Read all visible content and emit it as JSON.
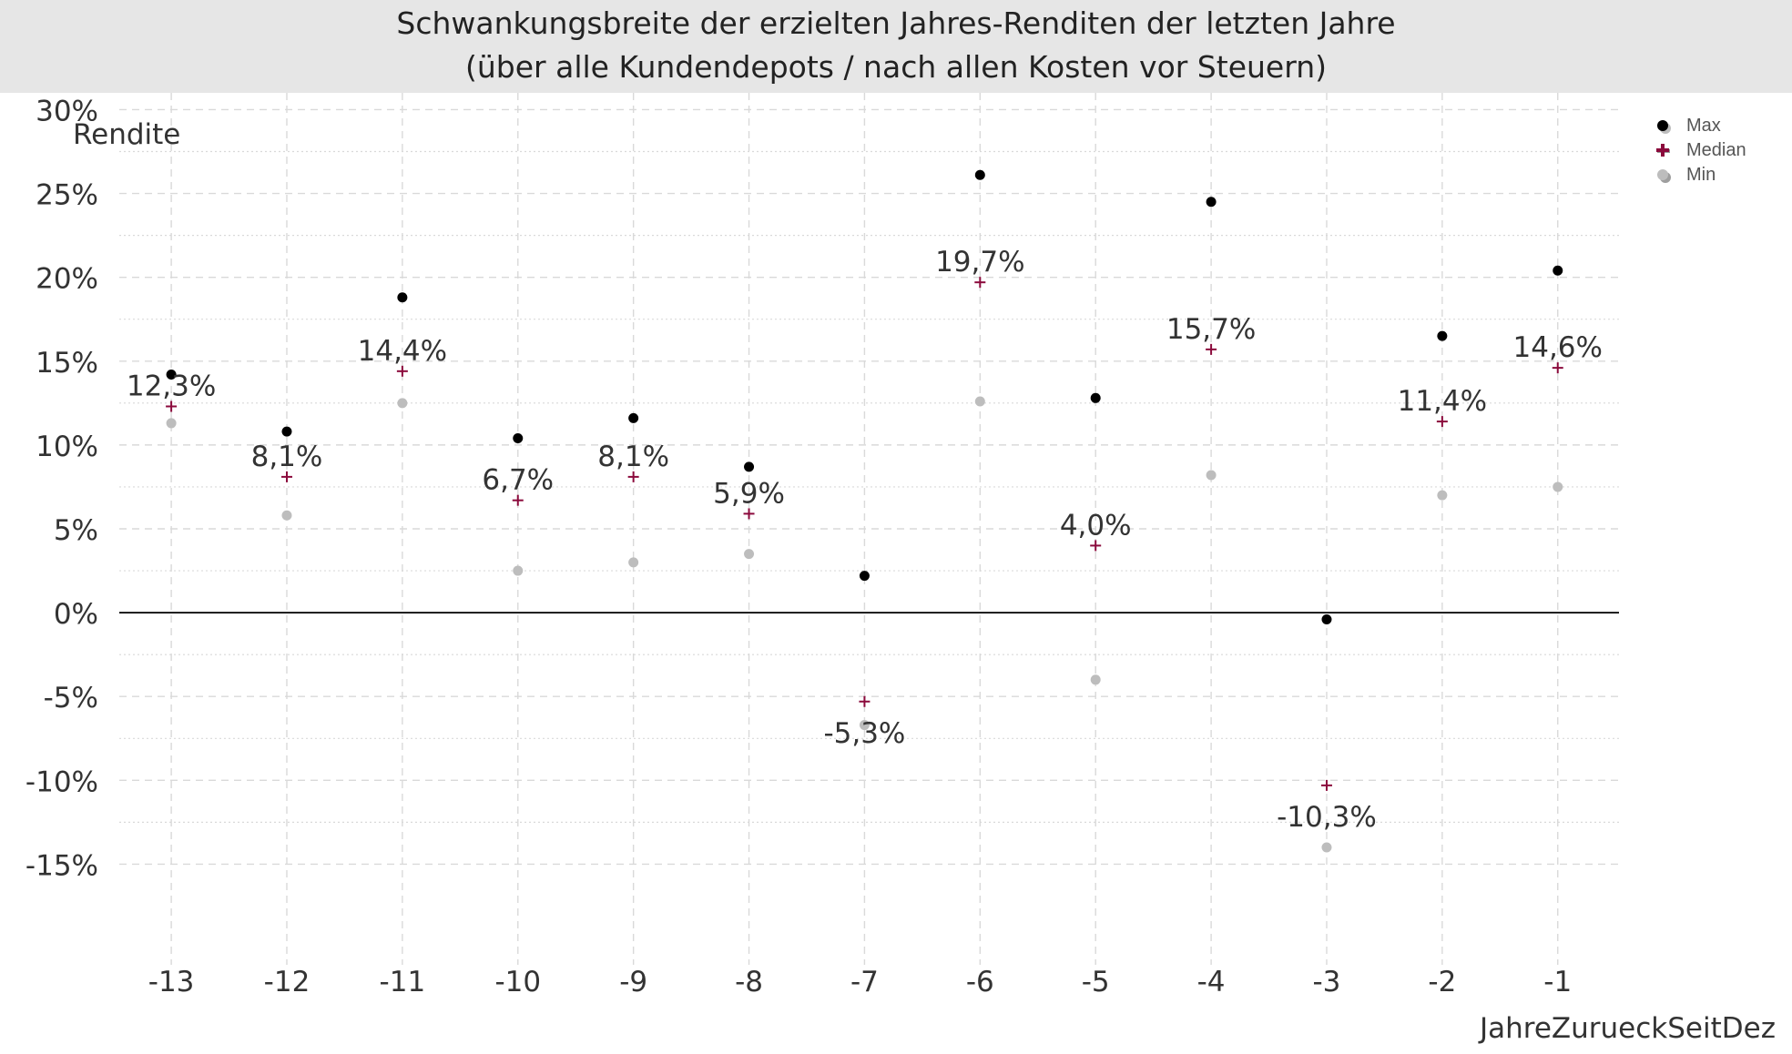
{
  "title": {
    "line1": "Schwankungsbreite der erzielten Jahres-Renditen der letzten Jahre",
    "line2": "(über alle Kundendepots / nach allen Kosten vor Steuern)"
  },
  "colors": {
    "background": "#ffffff",
    "title_bar": "#e6e6e6",
    "max": "#000000",
    "median": "#8b0a3c",
    "min": "#bdbdbd",
    "grid": "#d9d9d9",
    "zero_line": "#000000"
  },
  "chart_data": {
    "type": "scatter",
    "title": "Schwankungsbreite der erzielten Jahres-Renditen der letzten Jahre (über alle Kundendepots / nach allen Kosten vor Steuern)",
    "xlabel": "JahreZurueckSeitDez",
    "ylabel": "Rendite",
    "x": [
      -13,
      -12,
      -11,
      -10,
      -9,
      -8,
      -7,
      -6,
      -5,
      -4,
      -3,
      -2,
      -1
    ],
    "x_tick_labels": [
      "-13",
      "-12",
      "-11",
      "-10",
      "-9",
      "-8",
      "-7",
      "-6",
      "-5",
      "-4",
      "-3",
      "-2",
      "-1"
    ],
    "xlim": [
      -13.45,
      -0.47
    ],
    "ylim": [
      -21,
      31
    ],
    "y_ticks": [
      30,
      25,
      20,
      15,
      10,
      5,
      0,
      -5,
      -10,
      -15
    ],
    "y_tick_labels": [
      "30%",
      "25%",
      "20%",
      "15%",
      "10%",
      "5%",
      "0%",
      "-5%",
      "-10%",
      "-15%"
    ],
    "grid": true,
    "legend_position": "top-right",
    "series": [
      {
        "name": "Max",
        "marker": "dot",
        "values": [
          14.2,
          10.8,
          18.8,
          10.4,
          11.6,
          8.7,
          2.2,
          26.1,
          12.8,
          24.5,
          -0.4,
          16.5,
          20.4
        ]
      },
      {
        "name": "Median",
        "marker": "plus",
        "values": [
          12.3,
          8.1,
          14.4,
          6.7,
          8.1,
          5.9,
          -5.3,
          19.7,
          4.0,
          15.7,
          -10.3,
          11.4,
          14.6
        ]
      },
      {
        "name": "Min",
        "marker": "dot",
        "values": [
          11.3,
          5.8,
          12.5,
          2.5,
          3.0,
          3.5,
          -6.7,
          12.6,
          -4.0,
          8.2,
          -14.0,
          7.0,
          7.5
        ]
      }
    ],
    "median_labels": [
      "12,3%",
      "8,1%",
      "14,4%",
      "6,7%",
      "8,1%",
      "5,9%",
      "-5,3%",
      "19,7%",
      "4,0%",
      "15,7%",
      "-10,3%",
      "11,4%",
      "14,6%"
    ]
  }
}
